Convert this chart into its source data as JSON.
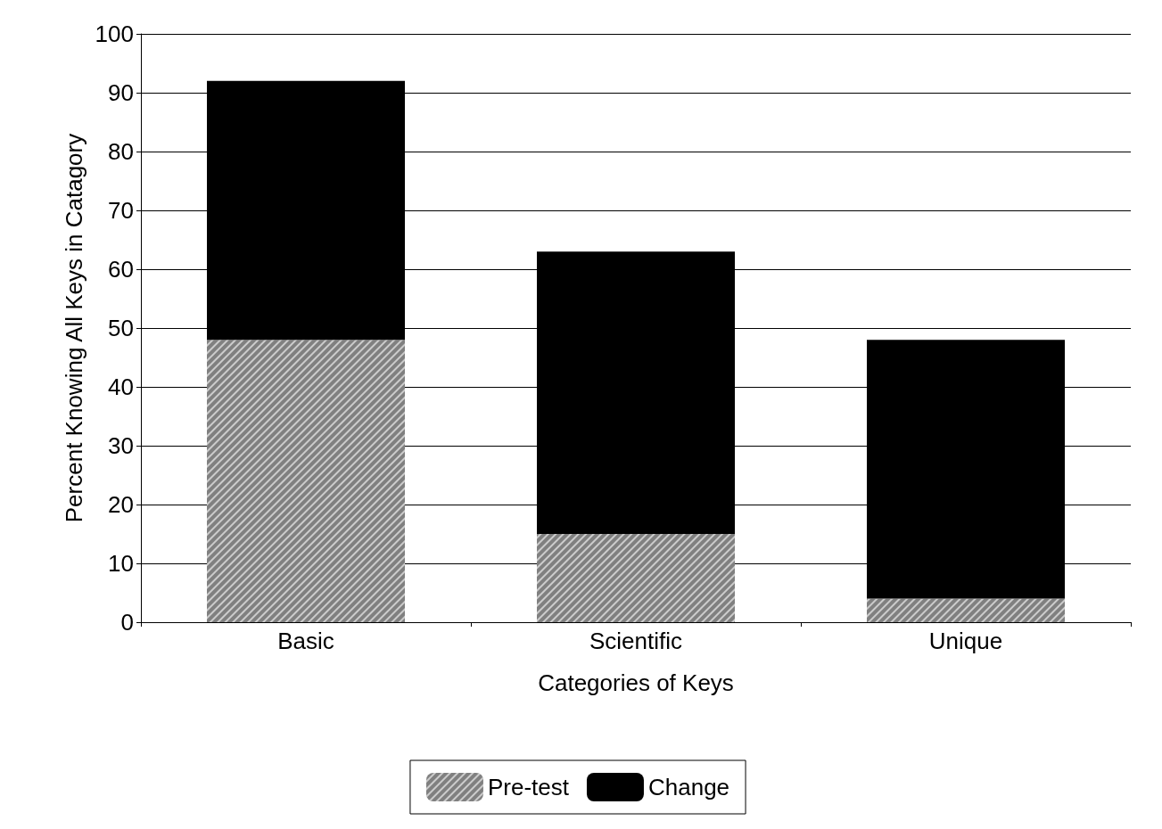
{
  "chart_data": {
    "type": "bar",
    "stacked": true,
    "xlabel": "Categories of Keys",
    "ylabel": "Percent Knowing All Keys in Catagory",
    "categories": [
      "Basic",
      "Scientific",
      "Unique"
    ],
    "series": [
      {
        "name": "Pre-test",
        "color": "#808080",
        "values": [
          48,
          15,
          4
        ]
      },
      {
        "name": "Change",
        "color": "#000000",
        "values": [
          44,
          48,
          44
        ]
      }
    ],
    "ylim": [
      0,
      100
    ],
    "yticks": [
      0,
      10,
      20,
      30,
      40,
      50,
      60,
      70,
      80,
      90,
      100
    ],
    "grid": "y",
    "legend": "bottom"
  }
}
